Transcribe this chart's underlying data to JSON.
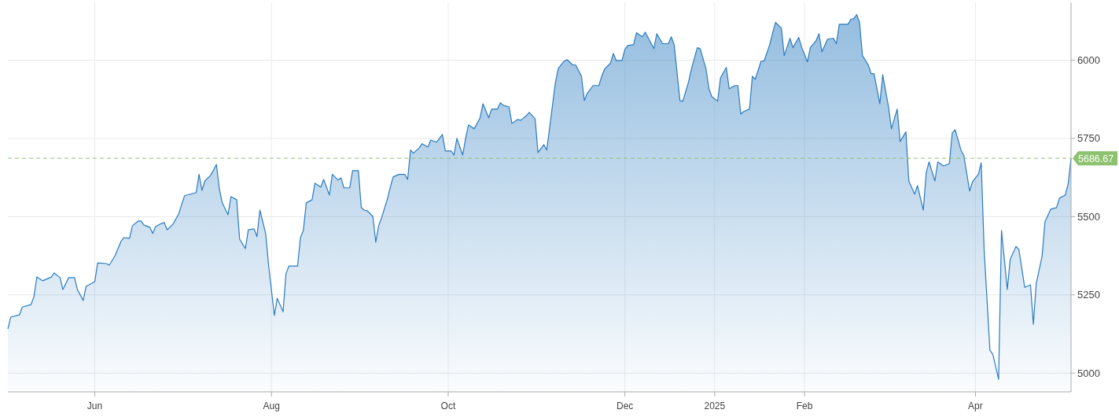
{
  "chart_data": {
    "type": "area",
    "color": "#2a7bc0",
    "x": [
      "2024-05-02",
      "2024-05-03",
      "2024-05-06",
      "2024-05-07",
      "2024-05-10",
      "2024-05-11",
      "2024-05-12",
      "2024-05-14",
      "2024-05-17",
      "2024-05-18",
      "2024-05-20",
      "2024-05-21",
      "2024-05-23",
      "2024-05-25",
      "2024-05-26",
      "2024-05-28",
      "2024-05-29",
      "2024-06-01",
      "2024-06-02",
      "2024-06-05",
      "2024-06-06",
      "2024-06-07",
      "2024-06-08",
      "2024-06-10",
      "2024-06-11",
      "2024-06-13",
      "2024-06-14",
      "2024-06-16",
      "2024-06-17",
      "2024-06-18",
      "2024-06-20",
      "2024-06-21",
      "2024-06-22",
      "2024-06-24",
      "2024-06-25",
      "2024-06-26",
      "2024-06-28",
      "2024-06-30",
      "2024-07-01",
      "2024-07-02",
      "2024-07-04",
      "2024-07-06",
      "2024-07-07",
      "2024-07-08",
      "2024-07-09",
      "2024-07-11",
      "2024-07-13",
      "2024-07-14",
      "2024-07-15",
      "2024-07-17",
      "2024-07-18",
      "2024-07-20",
      "2024-07-21",
      "2024-07-23",
      "2024-07-24",
      "2024-07-26",
      "2024-07-27",
      "2024-07-28",
      "2024-07-30",
      "2024-07-31",
      "2024-08-02",
      "2024-08-03",
      "2024-08-05",
      "2024-08-06",
      "2024-08-07",
      "2024-08-10",
      "2024-08-11",
      "2024-08-12",
      "2024-08-13",
      "2024-08-15",
      "2024-08-16",
      "2024-08-18",
      "2024-08-19",
      "2024-08-21",
      "2024-08-22",
      "2024-08-24",
      "2024-08-25",
      "2024-08-26",
      "2024-08-28",
      "2024-08-29",
      "2024-08-31",
      "2024-09-01",
      "2024-09-02",
      "2024-09-03",
      "2024-09-05",
      "2024-09-06",
      "2024-09-07",
      "2024-09-08",
      "2024-09-10",
      "2024-09-11",
      "2024-09-12",
      "2024-09-14",
      "2024-09-16",
      "2024-09-17",
      "2024-09-18",
      "2024-09-19",
      "2024-09-21",
      "2024-09-22",
      "2024-09-24",
      "2024-09-25",
      "2024-09-27",
      "2024-09-29",
      "2024-09-30",
      "2024-10-02",
      "2024-10-03",
      "2024-10-04",
      "2024-10-06",
      "2024-10-07",
      "2024-10-08",
      "2024-10-10",
      "2024-10-12",
      "2024-10-13",
      "2024-10-15",
      "2024-10-16",
      "2024-10-18",
      "2024-10-19",
      "2024-10-20",
      "2024-10-22",
      "2024-10-23",
      "2024-10-25",
      "2024-10-26",
      "2024-10-28",
      "2024-10-29",
      "2024-10-31",
      "2024-11-01",
      "2024-11-03",
      "2024-11-04",
      "2024-11-05",
      "2024-11-07",
      "2024-11-08",
      "2024-11-10",
      "2024-11-11",
      "2024-11-13",
      "2024-11-14",
      "2024-11-16",
      "2024-11-17",
      "2024-11-18",
      "2024-11-20",
      "2024-11-22",
      "2024-11-23",
      "2024-11-24",
      "2024-11-26",
      "2024-11-27",
      "2024-11-28",
      "2024-11-30",
      "2024-12-01",
      "2024-12-02",
      "2024-12-04",
      "2024-12-05",
      "2024-12-07",
      "2024-12-08",
      "2024-12-10",
      "2024-12-11",
      "2024-12-12",
      "2024-12-14",
      "2024-12-16",
      "2024-12-17",
      "2024-12-18",
      "2024-12-20",
      "2024-12-21",
      "2024-12-23",
      "2024-12-24",
      "2024-12-26",
      "2024-12-27",
      "2024-12-29",
      "2024-12-30",
      "2024-12-31",
      "2025-01-02",
      "2025-01-03",
      "2025-01-05",
      "2025-01-06",
      "2025-01-08",
      "2025-01-09",
      "2025-01-10",
      "2025-01-11",
      "2025-01-13",
      "2025-01-14",
      "2025-01-15",
      "2025-01-17",
      "2025-01-18",
      "2025-01-20",
      "2025-01-21",
      "2025-01-22",
      "2025-01-24",
      "2025-01-25",
      "2025-01-27",
      "2025-01-28",
      "2025-01-30",
      "2025-01-31",
      "2025-02-02",
      "2025-02-03",
      "2025-02-05",
      "2025-02-06",
      "2025-02-07",
      "2025-02-09",
      "2025-02-11",
      "2025-02-12",
      "2025-02-13",
      "2025-02-16",
      "2025-02-17",
      "2025-02-18",
      "2025-02-19",
      "2025-02-20",
      "2025-02-21",
      "2025-02-23",
      "2025-02-24",
      "2025-02-25",
      "2025-02-27",
      "2025-02-28",
      "2025-03-02",
      "2025-03-03",
      "2025-03-05",
      "2025-03-06",
      "2025-03-08",
      "2025-03-09",
      "2025-03-11",
      "2025-03-12",
      "2025-03-14",
      "2025-03-15",
      "2025-03-16",
      "2025-03-18",
      "2025-03-19",
      "2025-03-21",
      "2025-03-23",
      "2025-03-24",
      "2025-03-25",
      "2025-03-27",
      "2025-03-28",
      "2025-03-30",
      "2025-03-31",
      "2025-04-02",
      "2025-04-03",
      "2025-04-04",
      "2025-04-06",
      "2025-04-07",
      "2025-04-09",
      "2025-04-10",
      "2025-04-12",
      "2025-04-13",
      "2025-04-15",
      "2025-04-16",
      "2025-04-18",
      "2025-04-20",
      "2025-04-21",
      "2025-04-22",
      "2025-04-24",
      "2025-04-25",
      "2025-04-27",
      "2025-04-29",
      "2025-04-30",
      "2025-05-02",
      "2025-05-03",
      "2025-05-04"
    ],
    "values": [
      5141,
      5179,
      5186,
      5211,
      5219,
      5244,
      5307,
      5295,
      5307,
      5320,
      5305,
      5267,
      5305,
      5305,
      5267,
      5232,
      5277,
      5292,
      5352,
      5350,
      5345,
      5360,
      5375,
      5420,
      5433,
      5431,
      5471,
      5486,
      5486,
      5473,
      5466,
      5446,
      5468,
      5478,
      5481,
      5458,
      5476,
      5509,
      5539,
      5567,
      5572,
      5577,
      5635,
      5584,
      5614,
      5632,
      5667,
      5589,
      5544,
      5506,
      5564,
      5554,
      5428,
      5398,
      5458,
      5461,
      5436,
      5521,
      5446,
      5345,
      5184,
      5239,
      5196,
      5317,
      5342,
      5342,
      5433,
      5456,
      5544,
      5554,
      5607,
      5594,
      5619,
      5569,
      5635,
      5617,
      5624,
      5592,
      5592,
      5647,
      5647,
      5529,
      5521,
      5519,
      5501,
      5418,
      5471,
      5496,
      5556,
      5594,
      5627,
      5635,
      5635,
      5619,
      5713,
      5703,
      5720,
      5733,
      5723,
      5745,
      5738,
      5763,
      5710,
      5710,
      5697,
      5750,
      5697,
      5750,
      5793,
      5781,
      5816,
      5861,
      5816,
      5844,
      5844,
      5864,
      5856,
      5851,
      5798,
      5811,
      5808,
      5823,
      5833,
      5813,
      5705,
      5730,
      5713,
      5783,
      5929,
      5974,
      5997,
      6002,
      5985,
      5985,
      5949,
      5871,
      5894,
      5919,
      5919,
      5949,
      5972,
      5990,
      6022,
      5999,
      5999,
      6035,
      6047,
      6050,
      6088,
      6075,
      6090,
      6055,
      6037,
      6085,
      6053,
      6053,
      6075,
      6050,
      5871,
      5869,
      5932,
      5974,
      6040,
      6037,
      5972,
      5909,
      5884,
      5869,
      5944,
      5977,
      5909,
      5919,
      5919,
      5828,
      5836,
      5844,
      5949,
      5939,
      5997,
      5997,
      6050,
      6088,
      6121,
      6103,
      6015,
      6070,
      6040,
      6073,
      6042,
      5995,
      6040,
      6063,
      6085,
      6027,
      6068,
      6070,
      6053,
      6115,
      6115,
      6131,
      6133,
      6146,
      6121,
      6015,
      5985,
      5957,
      5957,
      5861,
      5954,
      5851,
      5781,
      5844,
      5740,
      5771,
      5614,
      5572,
      5599,
      5521,
      5640,
      5675,
      5614,
      5675,
      5662,
      5670,
      5768,
      5778,
      5713,
      5695,
      5582,
      5612,
      5635,
      5672,
      5395,
      5073,
      5060,
      4980,
      5456,
      5267,
      5363,
      5405,
      5395,
      5274,
      5282,
      5156,
      5287,
      5373,
      5483,
      5524,
      5529,
      5559,
      5569,
      5604,
      5686.67
    ],
    "xlim": [
      "2024-05-02",
      "2025-05-04"
    ],
    "xticks": [
      {
        "value": "2024-06-01",
        "label": "Jun"
      },
      {
        "value": "2024-08-01",
        "label": "Aug"
      },
      {
        "value": "2024-10-01",
        "label": "Oct"
      },
      {
        "value": "2024-12-01",
        "label": "Dec"
      },
      {
        "value": "2025-01-01",
        "label": "2025"
      },
      {
        "value": "2025-02-01",
        "label": "Feb"
      },
      {
        "value": "2025-04-01",
        "label": "Apr"
      }
    ],
    "ylim": [
      4940,
      6185
    ],
    "yticks": [
      5000,
      5250,
      5500,
      5750,
      6000
    ],
    "grid": true,
    "ref_lines": [
      {
        "axis": "y",
        "value": 5686.67,
        "label": "5686.67",
        "color": "#8dc26f",
        "line_style": "dashed"
      }
    ]
  }
}
